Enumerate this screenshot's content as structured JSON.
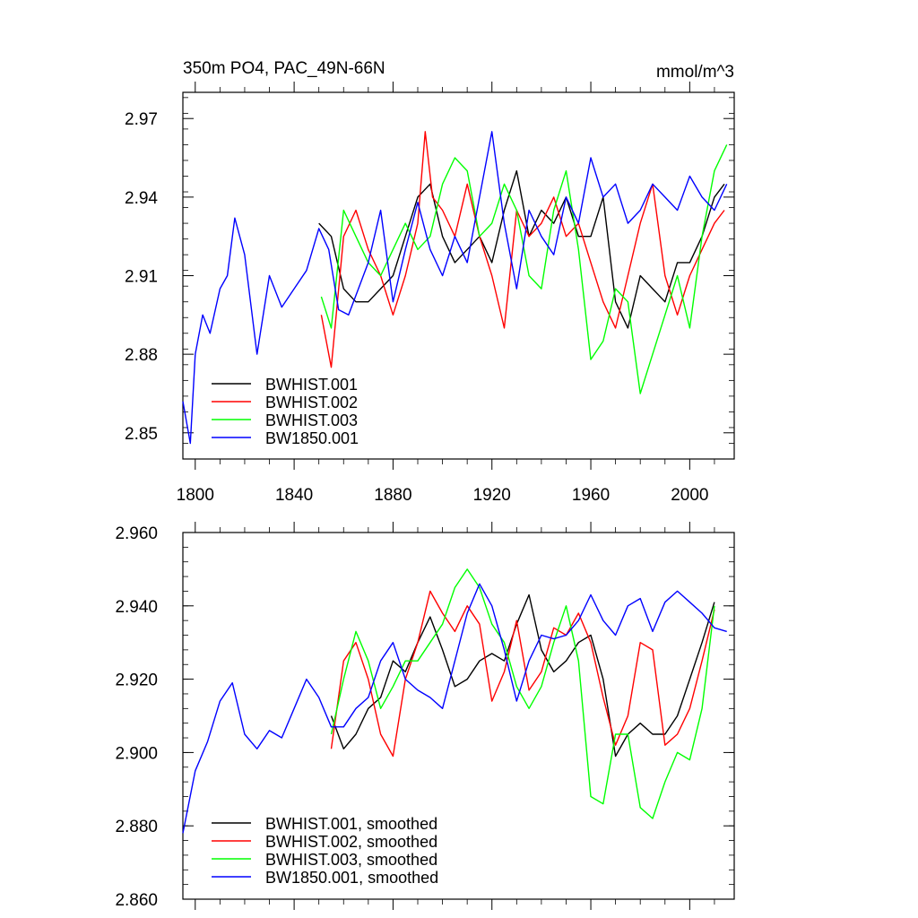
{
  "chart_data": [
    {
      "type": "line",
      "title": "350m PO4, PAC_49N-66N",
      "units": "mmol/m^3",
      "xlabel": "",
      "ylabel": "",
      "xlim": [
        1795,
        2018
      ],
      "ylim": [
        2.84,
        2.98
      ],
      "xticks": [
        1800,
        1840,
        1880,
        1920,
        1960,
        2000
      ],
      "yticks": [
        2.85,
        2.88,
        2.91,
        2.94,
        2.97
      ],
      "ytick_labels": [
        "2.85",
        "2.88",
        "2.91",
        "2.94",
        "2.97"
      ],
      "legend_position": "bottom-left",
      "series": [
        {
          "name": "BWHIST.001",
          "color": "#000000",
          "x": [
            1850,
            1855,
            1860,
            1865,
            1870,
            1875,
            1880,
            1885,
            1890,
            1895,
            1900,
            1905,
            1910,
            1915,
            1920,
            1925,
            1930,
            1935,
            1940,
            1945,
            1950,
            1955,
            1960,
            1965,
            1970,
            1975,
            1980,
            1985,
            1990,
            1995,
            2000,
            2005,
            2010,
            2014
          ],
          "y": [
            2.93,
            2.925,
            2.905,
            2.9,
            2.9,
            2.905,
            2.91,
            2.925,
            2.94,
            2.945,
            2.925,
            2.915,
            2.92,
            2.925,
            2.915,
            2.935,
            2.95,
            2.925,
            2.935,
            2.93,
            2.94,
            2.925,
            2.925,
            2.94,
            2.9,
            2.89,
            2.91,
            2.905,
            2.9,
            2.915,
            2.915,
            2.925,
            2.94,
            2.945
          ]
        },
        {
          "name": "BWHIST.002",
          "color": "#ff0000",
          "x": [
            1851,
            1855,
            1860,
            1865,
            1870,
            1875,
            1880,
            1885,
            1890,
            1893,
            1896,
            1900,
            1905,
            1910,
            1915,
            1920,
            1925,
            1930,
            1935,
            1940,
            1945,
            1950,
            1955,
            1960,
            1965,
            1970,
            1975,
            1980,
            1985,
            1990,
            1995,
            2000,
            2005,
            2010,
            2014
          ],
          "y": [
            2.895,
            2.875,
            2.925,
            2.935,
            2.92,
            2.91,
            2.895,
            2.91,
            2.93,
            2.965,
            2.94,
            2.935,
            2.925,
            2.945,
            2.925,
            2.91,
            2.89,
            2.935,
            2.925,
            2.93,
            2.94,
            2.925,
            2.93,
            2.915,
            2.9,
            2.89,
            2.91,
            2.93,
            2.945,
            2.91,
            2.895,
            2.91,
            2.92,
            2.93,
            2.935
          ]
        },
        {
          "name": "BWHIST.003",
          "color": "#00ff00",
          "x": [
            1851,
            1855,
            1860,
            1865,
            1870,
            1875,
            1880,
            1885,
            1890,
            1895,
            1900,
            1905,
            1910,
            1915,
            1920,
            1925,
            1930,
            1935,
            1940,
            1945,
            1950,
            1955,
            1960,
            1965,
            1970,
            1975,
            1980,
            1985,
            1990,
            1995,
            2000,
            2005,
            2010,
            2015
          ],
          "y": [
            2.902,
            2.89,
            2.935,
            2.925,
            2.915,
            2.91,
            2.92,
            2.93,
            2.92,
            2.925,
            2.945,
            2.955,
            2.95,
            2.925,
            2.93,
            2.945,
            2.935,
            2.91,
            2.905,
            2.935,
            2.95,
            2.92,
            2.878,
            2.885,
            2.905,
            2.9,
            2.865,
            2.88,
            2.895,
            2.91,
            2.89,
            2.925,
            2.95,
            2.96
          ]
        },
        {
          "name": "BW1850.001",
          "color": "#0000ff",
          "x": [
            1795,
            1798,
            1800,
            1803,
            1806,
            1810,
            1813,
            1816,
            1820,
            1825,
            1830,
            1835,
            1840,
            1845,
            1850,
            1854,
            1858,
            1862,
            1866,
            1870,
            1875,
            1880,
            1885,
            1890,
            1895,
            1900,
            1905,
            1910,
            1915,
            1920,
            1925,
            1930,
            1935,
            1940,
            1945,
            1950,
            1955,
            1960,
            1965,
            1970,
            1975,
            1980,
            1985,
            1990,
            1995,
            2000,
            2005,
            2010,
            2015
          ],
          "y": [
            2.862,
            2.846,
            2.88,
            2.895,
            2.888,
            2.905,
            2.91,
            2.932,
            2.918,
            2.88,
            2.91,
            2.898,
            2.905,
            2.912,
            2.928,
            2.92,
            2.897,
            2.895,
            2.905,
            2.915,
            2.935,
            2.9,
            2.92,
            2.938,
            2.92,
            2.91,
            2.925,
            2.915,
            2.94,
            2.965,
            2.93,
            2.905,
            2.935,
            2.925,
            2.918,
            2.94,
            2.93,
            2.955,
            2.94,
            2.945,
            2.93,
            2.935,
            2.945,
            2.94,
            2.935,
            2.948,
            2.94,
            2.935,
            2.945
          ]
        }
      ]
    },
    {
      "type": "line",
      "title": "",
      "xlabel": "",
      "ylabel": "",
      "xlim": [
        1795,
        2018
      ],
      "ylim": [
        2.86,
        2.96
      ],
      "xticks": [
        1800,
        1840,
        1880,
        1920,
        1960,
        2000
      ],
      "yticks": [
        2.86,
        2.88,
        2.9,
        2.92,
        2.94,
        2.96
      ],
      "ytick_labels": [
        "2.860",
        "2.880",
        "2.900",
        "2.920",
        "2.940",
        "2.960"
      ],
      "legend_position": "bottom-left",
      "series": [
        {
          "name": "BWHIST.001, smoothed",
          "color": "#000000",
          "x": [
            1855,
            1860,
            1865,
            1870,
            1875,
            1880,
            1885,
            1890,
            1895,
            1900,
            1905,
            1910,
            1915,
            1920,
            1925,
            1930,
            1935,
            1940,
            1945,
            1950,
            1955,
            1960,
            1965,
            1970,
            1975,
            1980,
            1985,
            1990,
            1995,
            2000,
            2005,
            2010
          ],
          "y": [
            2.91,
            2.901,
            2.905,
            2.912,
            2.915,
            2.925,
            2.922,
            2.93,
            2.937,
            2.928,
            2.918,
            2.92,
            2.925,
            2.927,
            2.925,
            2.935,
            2.943,
            2.928,
            2.922,
            2.925,
            2.93,
            2.932,
            2.92,
            2.899,
            2.905,
            2.908,
            2.905,
            2.905,
            2.91,
            2.92,
            2.93,
            2.941
          ]
        },
        {
          "name": "BWHIST.002, smoothed",
          "color": "#ff0000",
          "x": [
            1855,
            1860,
            1865,
            1870,
            1875,
            1880,
            1885,
            1890,
            1895,
            1900,
            1905,
            1910,
            1915,
            1920,
            1925,
            1930,
            1935,
            1940,
            1945,
            1950,
            1955,
            1960,
            1965,
            1970,
            1975,
            1980,
            1985,
            1990,
            1995,
            2000,
            2005,
            2010
          ],
          "y": [
            2.901,
            2.925,
            2.93,
            2.92,
            2.905,
            2.899,
            2.92,
            2.93,
            2.944,
            2.938,
            2.933,
            2.94,
            2.935,
            2.914,
            2.922,
            2.936,
            2.917,
            2.922,
            2.934,
            2.932,
            2.938,
            2.93,
            2.915,
            2.902,
            2.91,
            2.93,
            2.928,
            2.902,
            2.905,
            2.912,
            2.925,
            2.939
          ]
        },
        {
          "name": "BWHIST.003, smoothed",
          "color": "#00ff00",
          "x": [
            1855,
            1860,
            1865,
            1870,
            1875,
            1880,
            1885,
            1890,
            1895,
            1900,
            1905,
            1910,
            1915,
            1920,
            1925,
            1930,
            1935,
            1940,
            1945,
            1950,
            1955,
            1960,
            1965,
            1970,
            1975,
            1980,
            1985,
            1990,
            1995,
            2000,
            2005,
            2010
          ],
          "y": [
            2.905,
            2.92,
            2.933,
            2.925,
            2.912,
            2.918,
            2.925,
            2.925,
            2.93,
            2.935,
            2.945,
            2.95,
            2.945,
            2.935,
            2.93,
            2.918,
            2.912,
            2.918,
            2.93,
            2.94,
            2.925,
            2.888,
            2.886,
            2.905,
            2.905,
            2.885,
            2.882,
            2.892,
            2.9,
            2.898,
            2.912,
            2.94
          ]
        },
        {
          "name": "BW1850.001, smoothed",
          "color": "#0000ff",
          "x": [
            1795,
            1800,
            1805,
            1810,
            1815,
            1820,
            1825,
            1830,
            1835,
            1840,
            1845,
            1850,
            1855,
            1860,
            1865,
            1870,
            1875,
            1880,
            1885,
            1890,
            1895,
            1900,
            1905,
            1910,
            1915,
            1920,
            1925,
            1930,
            1935,
            1940,
            1945,
            1950,
            1955,
            1960,
            1965,
            1970,
            1975,
            1980,
            1985,
            1990,
            1995,
            2000,
            2005,
            2010,
            2015
          ],
          "y": [
            2.878,
            2.895,
            2.903,
            2.914,
            2.919,
            2.905,
            2.901,
            2.906,
            2.904,
            2.912,
            2.92,
            2.915,
            2.907,
            2.907,
            2.912,
            2.915,
            2.925,
            2.93,
            2.92,
            2.917,
            2.915,
            2.912,
            2.925,
            2.938,
            2.946,
            2.94,
            2.928,
            2.914,
            2.925,
            2.932,
            2.931,
            2.932,
            2.936,
            2.943,
            2.936,
            2.932,
            2.94,
            2.942,
            2.933,
            2.941,
            2.944,
            2.941,
            2.938,
            2.934,
            2.933
          ]
        }
      ]
    }
  ]
}
